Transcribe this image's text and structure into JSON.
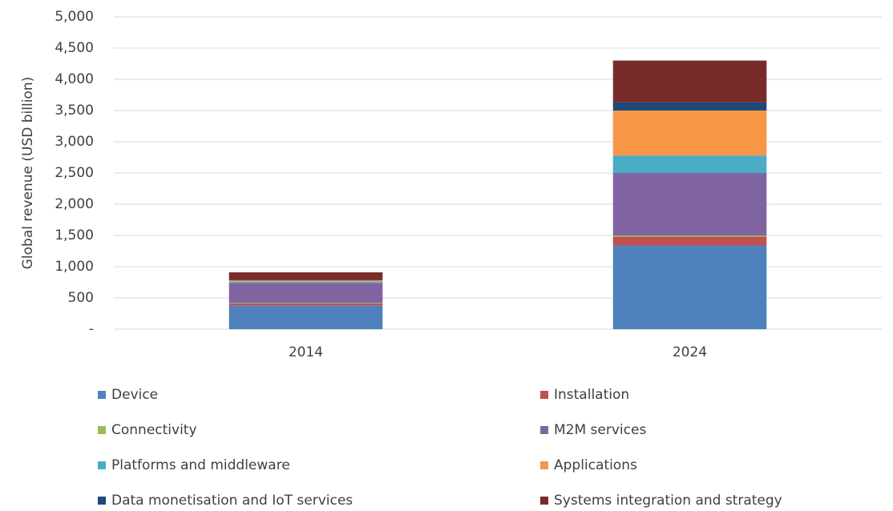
{
  "chart_data": {
    "type": "stacked_bar",
    "y_label": "Global revenue (USD billion)",
    "categories": [
      "2014",
      "2024"
    ],
    "series": [
      {
        "name": "Device",
        "color": "#4f81bd",
        "values": [
          380,
          1340
        ]
      },
      {
        "name": "Installation",
        "color": "#c0504d",
        "values": [
          30,
          140
        ]
      },
      {
        "name": "Connectivity",
        "color": "#9bbb59",
        "values": [
          10,
          20
        ]
      },
      {
        "name": "M2M services",
        "color": "#8064a2",
        "values": [
          320,
          1000
        ]
      },
      {
        "name": "Platforms and middleware",
        "color": "#4bacc6",
        "values": [
          20,
          280
        ]
      },
      {
        "name": "Applications",
        "color": "#f79646",
        "values": [
          20,
          720
        ]
      },
      {
        "name": "Data monetisation and IoT services",
        "color": "#1f497d",
        "values": [
          10,
          130
        ]
      },
      {
        "name": "Systems integration and strategy",
        "color": "#772c2a",
        "values": [
          120,
          670
        ]
      }
    ],
    "ylim": [
      0,
      5000
    ],
    "yticks": [
      {
        "value": 0,
        "label": "-"
      },
      500,
      {
        "value": 1000,
        "label": "1,000"
      },
      {
        "value": 1500,
        "label": "1,500"
      },
      {
        "value": 2000,
        "label": "2,000"
      },
      {
        "value": 2500,
        "label": "2,500"
      },
      {
        "value": 3000,
        "label": "3,000"
      },
      {
        "value": 3500,
        "label": "3,500"
      },
      {
        "value": 4000,
        "label": "4,000"
      },
      {
        "value": 4500,
        "label": "4,500"
      },
      {
        "value": 5000,
        "label": "5,000"
      }
    ],
    "grid": true,
    "legend": "bottom"
  }
}
